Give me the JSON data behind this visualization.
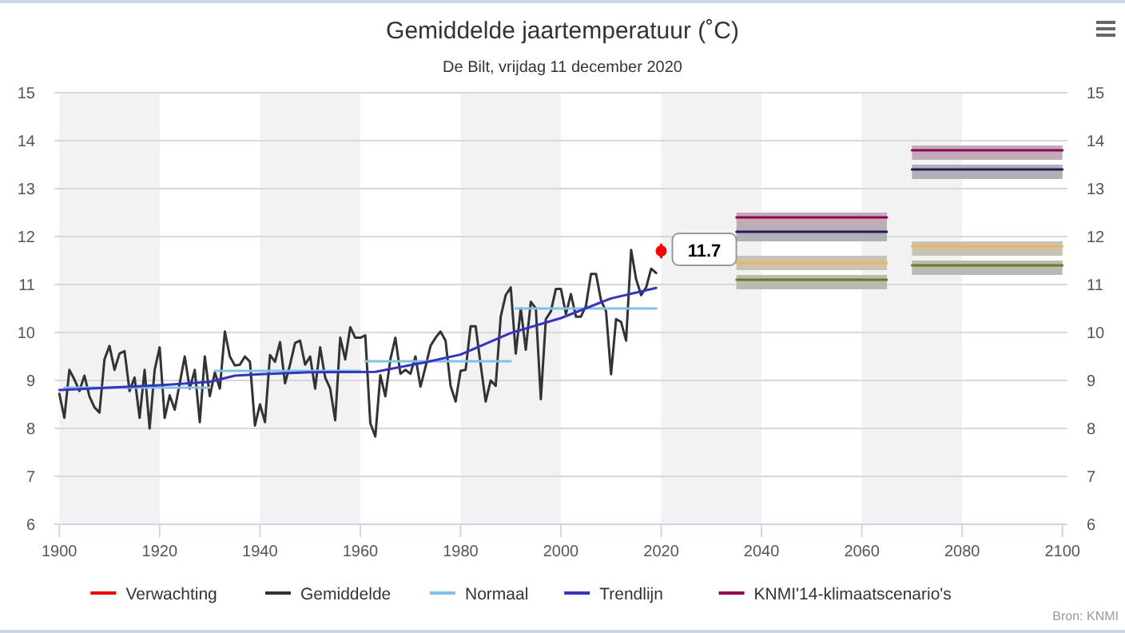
{
  "chart_data": {
    "type": "line",
    "title": "Gemiddelde jaartemperatuur (˚C)",
    "subtitle": "De Bilt, vrijdag 11 december 2020",
    "annotations": [
      "Bron: KNMI"
    ],
    "xlim": [
      1899,
      2101
    ],
    "xticks": [
      1900,
      1920,
      1940,
      1960,
      1980,
      2000,
      2020,
      2040,
      2060,
      2080,
      2100
    ],
    "ylim": [
      6,
      15
    ],
    "yticks": [
      6,
      7,
      8,
      9,
      10,
      11,
      12,
      13,
      14,
      15
    ],
    "y2lim": [
      6,
      15
    ],
    "y2ticks": [
      6,
      7,
      8,
      9,
      10,
      11,
      12,
      13,
      14,
      15
    ],
    "grid": "y",
    "legend": "bottom",
    "marker": "none",
    "line_style": "solid",
    "bands": [
      {
        "axis": "x",
        "from": 1900,
        "to": 1920,
        "color": "#f2f2f2"
      },
      {
        "axis": "x",
        "from": 1940,
        "to": 1960,
        "color": "#f2f2f2"
      },
      {
        "axis": "x",
        "from": 1980,
        "to": 2000,
        "color": "#f2f2f2"
      },
      {
        "axis": "x",
        "from": 2020,
        "to": 2040,
        "color": "#f2f2f2"
      },
      {
        "axis": "x",
        "from": 2060,
        "to": 2080,
        "color": "#f2f2f2"
      }
    ],
    "series": [
      {
        "name": "Verwachting",
        "type": "scatter",
        "marker": "circle",
        "color": "#ff0000",
        "x": [
          2020
        ],
        "values": [
          11.7
        ],
        "errors": [
          0.15
        ],
        "value_labels": [
          "11.7"
        ]
      },
      {
        "name": "Gemiddelde",
        "color": "#333333",
        "x": [
          1900,
          1901,
          1902,
          1903,
          1904,
          1905,
          1906,
          1907,
          1908,
          1909,
          1910,
          1911,
          1912,
          1913,
          1914,
          1915,
          1916,
          1917,
          1918,
          1919,
          1920,
          1921,
          1922,
          1923,
          1924,
          1925,
          1926,
          1927,
          1928,
          1929,
          1930,
          1931,
          1932,
          1933,
          1934,
          1935,
          1936,
          1937,
          1938,
          1939,
          1940,
          1941,
          1942,
          1943,
          1944,
          1945,
          1946,
          1947,
          1948,
          1949,
          1950,
          1951,
          1952,
          1953,
          1954,
          1955,
          1956,
          1957,
          1958,
          1959,
          1960,
          1961,
          1962,
          1963,
          1964,
          1965,
          1966,
          1967,
          1968,
          1969,
          1970,
          1971,
          1972,
          1973,
          1974,
          1975,
          1976,
          1977,
          1978,
          1979,
          1980,
          1981,
          1982,
          1983,
          1984,
          1985,
          1986,
          1987,
          1988,
          1989,
          1990,
          1991,
          1992,
          1993,
          1994,
          1995,
          1996,
          1997,
          1998,
          1999,
          2000,
          2001,
          2002,
          2003,
          2004,
          2005,
          2006,
          2007,
          2008,
          2009,
          2010,
          2011,
          2012,
          2013,
          2014,
          2015,
          2016,
          2017,
          2018,
          2019
        ],
        "values": [
          8.72,
          8.22,
          9.22,
          9.02,
          8.78,
          9.1,
          8.67,
          8.44,
          8.33,
          9.44,
          9.72,
          9.22,
          9.56,
          9.61,
          8.78,
          9.06,
          8.22,
          9.22,
          8.0,
          9.22,
          9.69,
          8.22,
          8.69,
          8.39,
          8.94,
          9.5,
          8.83,
          9.22,
          8.13,
          9.5,
          8.67,
          9.17,
          8.83,
          10.02,
          9.5,
          9.31,
          9.33,
          9.5,
          9.39,
          8.06,
          8.5,
          8.13,
          9.53,
          9.39,
          9.8,
          8.94,
          9.33,
          9.78,
          9.83,
          9.33,
          9.5,
          8.83,
          9.69,
          9.06,
          8.83,
          8.17,
          9.89,
          9.44,
          10.11,
          9.89,
          9.89,
          9.94,
          8.11,
          7.83,
          9.11,
          8.67,
          9.44,
          9.89,
          9.14,
          9.22,
          9.14,
          9.5,
          8.87,
          9.28,
          9.72,
          9.89,
          10.02,
          9.83,
          8.89,
          8.56,
          9.2,
          9.22,
          10.13,
          10.13,
          9.33,
          8.56,
          9.0,
          8.89,
          10.33,
          10.78,
          10.94,
          9.56,
          10.5,
          9.64,
          10.64,
          10.5,
          8.61,
          10.28,
          10.44,
          10.91,
          10.91,
          10.39,
          10.8,
          10.33,
          10.33,
          10.56,
          11.22,
          11.22,
          10.67,
          10.44,
          9.13,
          10.28,
          10.22,
          9.83,
          11.72,
          11.11,
          10.78,
          10.94,
          11.33,
          11.24
        ]
      },
      {
        "name": "Normaal",
        "color": "#7cc4e8",
        "x": [
          1901,
          1930,
          1930.5,
          1931,
          1960,
          1960.5,
          1961,
          1990,
          1990.5,
          1991,
          2019
        ],
        "values": [
          8.85,
          8.85,
          null,
          9.2,
          9.2,
          null,
          9.4,
          9.4,
          null,
          10.5,
          10.5
        ]
      },
      {
        "name": "Trendlijn",
        "color": "#3333cc",
        "x": [
          1900,
          1920,
          1930,
          1935,
          1940,
          1950,
          1963,
          1973,
          1980,
          1990,
          2000,
          2010,
          2019
        ],
        "values": [
          8.8,
          8.9,
          8.97,
          9.1,
          9.13,
          9.17,
          9.18,
          9.38,
          9.54,
          9.99,
          10.3,
          10.71,
          10.93
        ]
      },
      {
        "name": "KNMI'14-klimaatscenario's",
        "color": "#990055",
        "x": [
          2035,
          2065,
          2067,
          2070,
          2100
        ],
        "values": [
          12.4,
          12.4,
          null,
          13.8,
          13.8
        ],
        "lower": [
          12.2,
          12.2,
          null,
          13.6,
          13.6
        ],
        "upper": [
          12.5,
          12.5,
          null,
          13.9,
          13.9
        ]
      },
      {
        "color": "#2b1a5a",
        "x": [
          2035,
          2065,
          2067,
          2070,
          2100
        ],
        "values": [
          12.1,
          12.1,
          null,
          13.4,
          13.4
        ],
        "lower": [
          11.9,
          11.9,
          null,
          13.2,
          13.2
        ],
        "upper": [
          12.2,
          12.2,
          null,
          13.5,
          13.5
        ]
      },
      {
        "color": "#f0b84a",
        "x": [
          2035,
          2065,
          2067,
          2070,
          2100
        ],
        "values": [
          11.45,
          11.45,
          null,
          11.8,
          11.8
        ],
        "lower": [
          11.3,
          11.3,
          null,
          11.6,
          11.6
        ],
        "upper": [
          11.6,
          11.6,
          null,
          11.9,
          11.9
        ]
      },
      {
        "color": "#6b7a1a",
        "x": [
          2035,
          2065,
          2067,
          2070,
          2100
        ],
        "values": [
          11.1,
          11.1,
          null,
          11.4,
          11.4
        ],
        "lower": [
          10.9,
          10.9,
          null,
          11.2,
          11.2
        ],
        "upper": [
          11.2,
          11.2,
          null,
          11.5,
          11.5
        ]
      }
    ]
  }
}
